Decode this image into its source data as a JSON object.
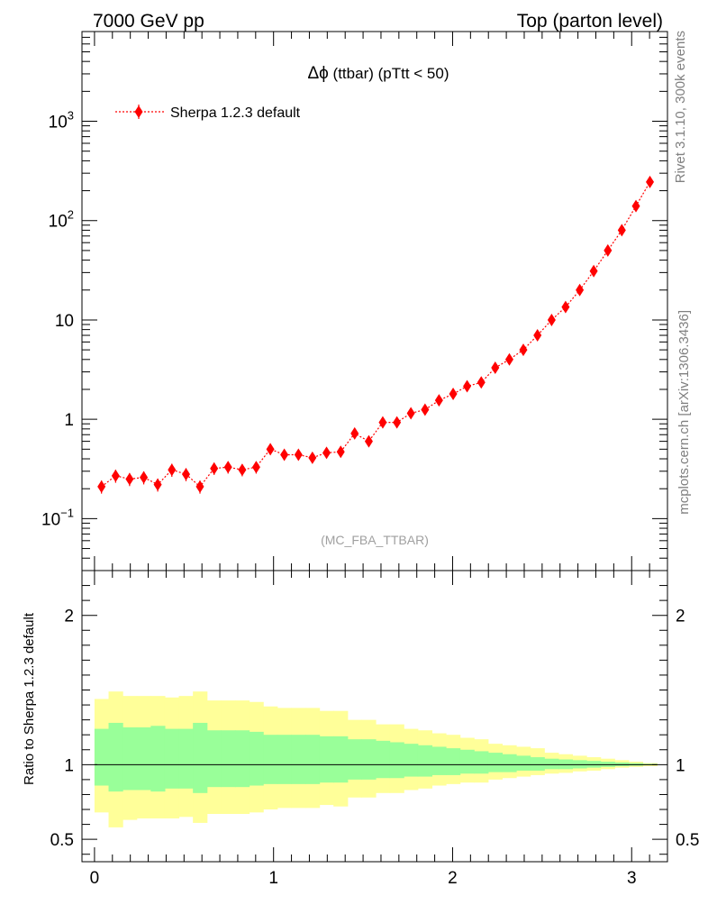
{
  "header": {
    "left": "7000 GeV pp",
    "right": "Top (parton level)"
  },
  "side_labels": {
    "rivet": "Rivet 3.1.10,  300k events",
    "mcplots": "mcplots.cern.ch [arXiv:1306.3436]"
  },
  "chart_data": [
    {
      "type": "scatter",
      "title": "Δϕ (ttbar) (pTtt < 50)",
      "title_symbol": "Δϕ",
      "title_rest": " (ttbar) (pTtt < 50)",
      "analysis_label": "(MC_FBA_TTBAR)",
      "xlim": [
        -0.07,
        3.2
      ],
      "ylim": [
        0.03,
        8000
      ],
      "yscale": "log",
      "yticks": [
        {
          "value": 0.1,
          "base": "10",
          "exp": "−1"
        },
        {
          "value": 1,
          "label": "1"
        },
        {
          "value": 10,
          "label": "10"
        },
        {
          "value": 100,
          "base": "10",
          "exp": "2"
        },
        {
          "value": 1000,
          "base": "10",
          "exp": "3"
        }
      ],
      "legend": {
        "position": "top-left",
        "entries": [
          "Sherpa 1.2.3 default"
        ]
      },
      "color": "#ff0000",
      "series": [
        {
          "name": "Sherpa 1.2.3 default",
          "x": [
            0.039,
            0.118,
            0.196,
            0.275,
            0.353,
            0.432,
            0.511,
            0.589,
            0.668,
            0.746,
            0.825,
            0.903,
            0.982,
            1.06,
            1.139,
            1.217,
            1.296,
            1.375,
            1.453,
            1.532,
            1.61,
            1.689,
            1.767,
            1.846,
            1.924,
            2.003,
            2.081,
            2.16,
            2.238,
            2.317,
            2.395,
            2.474,
            2.553,
            2.631,
            2.71,
            2.788,
            2.867,
            2.945,
            3.024,
            3.102
          ],
          "y": [
            0.21,
            0.27,
            0.25,
            0.26,
            0.22,
            0.31,
            0.28,
            0.21,
            0.32,
            0.33,
            0.31,
            0.33,
            0.5,
            0.44,
            0.44,
            0.41,
            0.46,
            0.47,
            0.72,
            0.6,
            0.93,
            0.93,
            1.15,
            1.25,
            1.55,
            1.8,
            2.15,
            2.35,
            3.3,
            4.0,
            5.0,
            7.0,
            10.0,
            13.5,
            20.0,
            31.0,
            50.0,
            80.0,
            140.0,
            245.0
          ],
          "yerr_rel": [
            0.15,
            0.15,
            0.15,
            0.15,
            0.15,
            0.15,
            0.15,
            0.15,
            0.14,
            0.14,
            0.14,
            0.14,
            0.12,
            0.12,
            0.12,
            0.12,
            0.12,
            0.12,
            0.1,
            0.1,
            0.09,
            0.09,
            0.08,
            0.08,
            0.07,
            0.07,
            0.06,
            0.06,
            0.05,
            0.05,
            0.04,
            0.04,
            0.03,
            0.03,
            0.03,
            0.02,
            0.02,
            0.02,
            0.02,
            0.02
          ]
        }
      ]
    },
    {
      "type": "area",
      "ylabel": "Ratio to Sherpa 1.2.3 default",
      "xlim": [
        -0.07,
        3.2
      ],
      "ylim": [
        0.35,
        2.3
      ],
      "yticks": [
        0.5,
        1,
        2
      ],
      "xticks": [
        0,
        1,
        2,
        3
      ],
      "reference_line": 1,
      "bin_edges": [
        0,
        0.0785,
        0.157,
        0.2355,
        0.314,
        0.3925,
        0.471,
        0.5495,
        0.628,
        0.7065,
        0.785,
        0.8635,
        0.942,
        1.0205,
        1.099,
        1.1775,
        1.256,
        1.3345,
        1.413,
        1.4915,
        1.57,
        1.6485,
        1.727,
        1.8055,
        1.884,
        1.9625,
        2.041,
        2.1195,
        2.198,
        2.2765,
        2.355,
        2.4335,
        2.512,
        2.5905,
        2.669,
        2.7475,
        2.826,
        2.9045,
        2.983,
        3.0615,
        3.1416
      ],
      "bands": {
        "green": {
          "color": "#99ff99",
          "lower": [
            0.86,
            0.82,
            0.83,
            0.83,
            0.82,
            0.84,
            0.84,
            0.81,
            0.85,
            0.85,
            0.85,
            0.86,
            0.87,
            0.87,
            0.87,
            0.87,
            0.88,
            0.88,
            0.9,
            0.9,
            0.91,
            0.91,
            0.92,
            0.92,
            0.93,
            0.93,
            0.94,
            0.94,
            0.95,
            0.95,
            0.96,
            0.96,
            0.97,
            0.97,
            0.975,
            0.98,
            0.985,
            0.99,
            0.993,
            0.996
          ],
          "upper": [
            1.24,
            1.28,
            1.25,
            1.25,
            1.26,
            1.24,
            1.24,
            1.28,
            1.23,
            1.23,
            1.23,
            1.22,
            1.2,
            1.2,
            1.2,
            1.2,
            1.19,
            1.19,
            1.17,
            1.17,
            1.16,
            1.15,
            1.14,
            1.13,
            1.12,
            1.11,
            1.1,
            1.09,
            1.08,
            1.07,
            1.06,
            1.05,
            1.04,
            1.035,
            1.03,
            1.025,
            1.02,
            1.015,
            1.01,
            1.005
          ]
        },
        "yellow": {
          "color": "#ffff99",
          "lower": [
            0.68,
            0.58,
            0.63,
            0.64,
            0.64,
            0.64,
            0.65,
            0.61,
            0.67,
            0.67,
            0.67,
            0.68,
            0.7,
            0.71,
            0.71,
            0.71,
            0.73,
            0.72,
            0.78,
            0.78,
            0.81,
            0.81,
            0.83,
            0.84,
            0.86,
            0.87,
            0.88,
            0.88,
            0.9,
            0.91,
            0.92,
            0.93,
            0.94,
            0.945,
            0.955,
            0.96,
            0.97,
            0.98,
            0.985,
            0.99
          ],
          "upper": [
            1.44,
            1.49,
            1.46,
            1.46,
            1.46,
            1.45,
            1.46,
            1.49,
            1.43,
            1.43,
            1.43,
            1.42,
            1.39,
            1.38,
            1.38,
            1.38,
            1.36,
            1.36,
            1.3,
            1.3,
            1.27,
            1.27,
            1.24,
            1.23,
            1.21,
            1.2,
            1.18,
            1.17,
            1.14,
            1.13,
            1.12,
            1.11,
            1.08,
            1.07,
            1.06,
            1.05,
            1.04,
            1.03,
            1.02,
            1.01
          ]
        }
      }
    }
  ]
}
